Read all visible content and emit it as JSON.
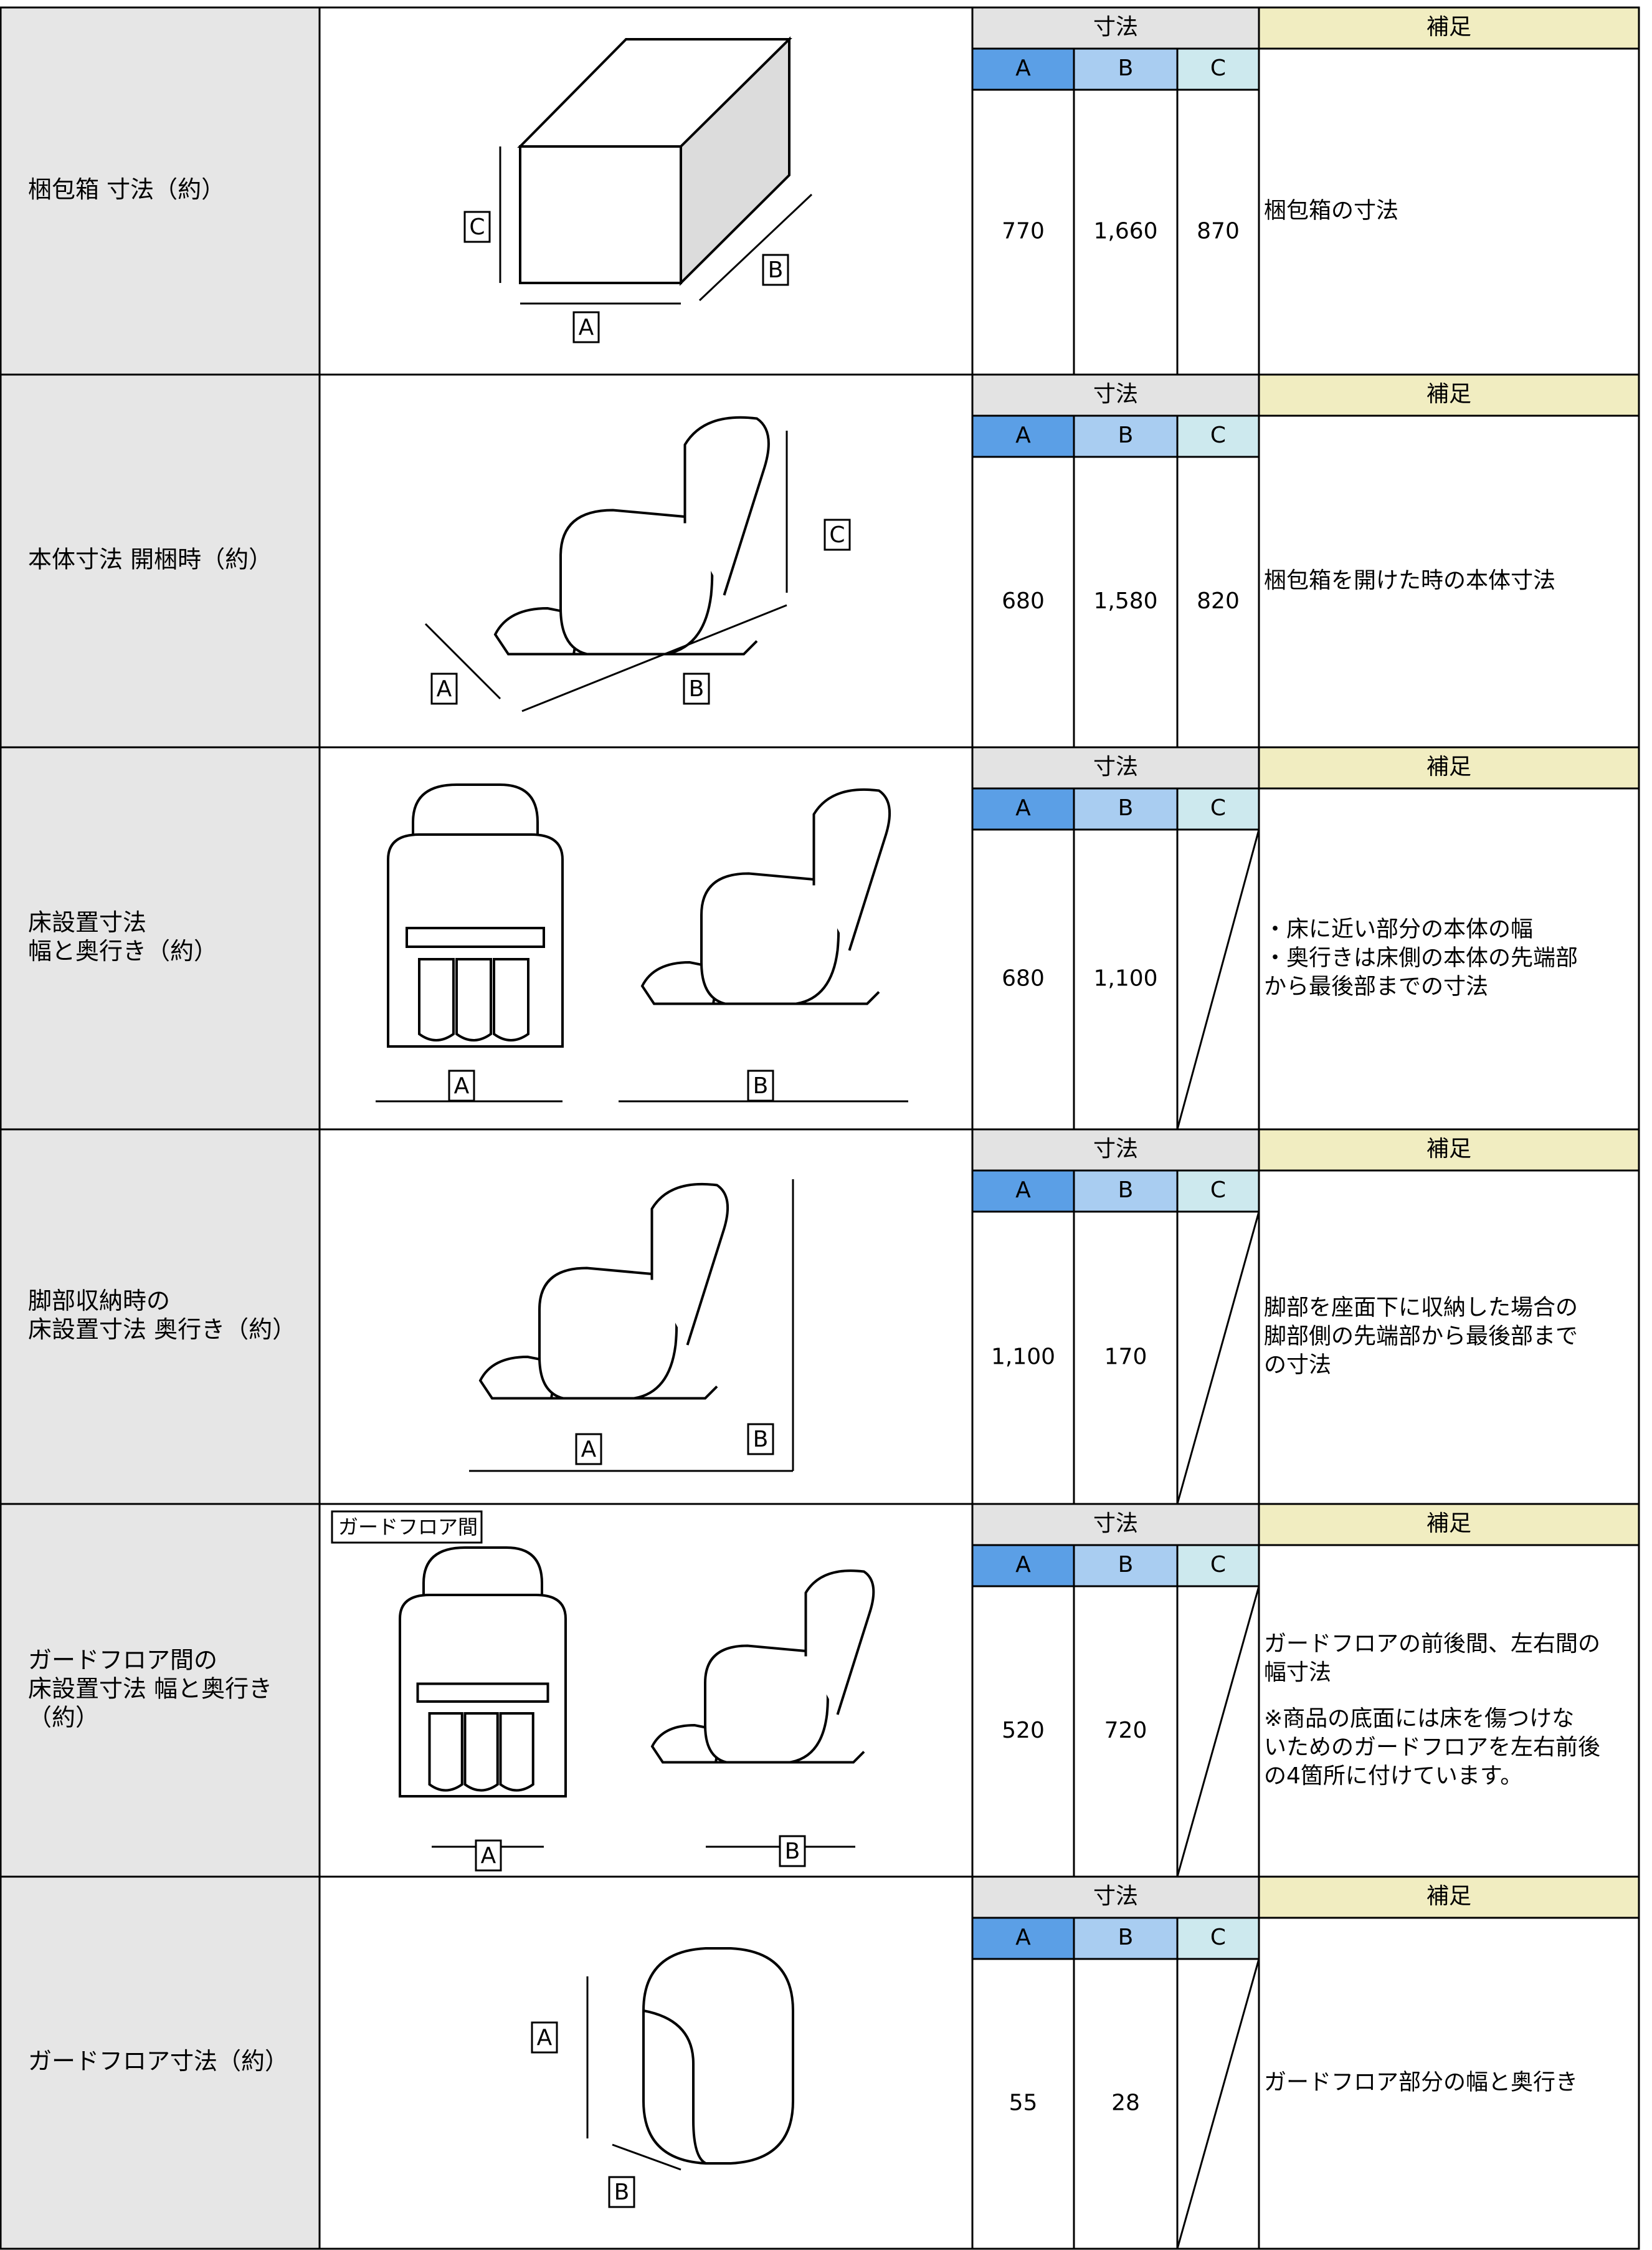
{
  "rows": [
    {
      "label": [
        "梱包箱 寸法（約）"
      ],
      "header_dims": "寸法",
      "header_note": "補足",
      "col_heads": [
        "A",
        "B",
        "C"
      ],
      "values": [
        "770",
        "1,660",
        "870"
      ],
      "note": [
        [
          "梱包箱の寸法"
        ]
      ],
      "diagram_labels": [
        "C",
        "B",
        "A"
      ]
    },
    {
      "label": [
        "本体寸法 開梱時（約）"
      ],
      "header_dims": "寸法",
      "header_note": "補足",
      "col_heads": [
        "A",
        "B",
        "C"
      ],
      "values": [
        "680",
        "1,580",
        "820"
      ],
      "note": [
        [
          "梱包箱を開けた時の本体寸法"
        ]
      ],
      "diagram_labels": [
        "C",
        "A",
        "B"
      ]
    },
    {
      "label": [
        "床設置寸法",
        "幅と奥行き（約）"
      ],
      "header_dims": "寸法",
      "header_note": "補足",
      "col_heads": [
        "A",
        "B",
        "C"
      ],
      "values": [
        "680",
        "1,100",
        null
      ],
      "note": [
        [
          "・床に近い部分の本体の幅",
          "・奥行きは床側の本体の先端部",
          "から最後部までの寸法"
        ]
      ],
      "diagram_labels": [
        "A",
        "B"
      ]
    },
    {
      "label": [
        "脚部収納時の",
        "床設置寸法 奥行き（約）"
      ],
      "header_dims": "寸法",
      "header_note": "補足",
      "col_heads": [
        "A",
        "B",
        "C"
      ],
      "values": [
        "1,100",
        "170",
        null
      ],
      "note": [
        [
          "脚部を座面下に収納した場合の",
          "脚部側の先端部から最後部まで",
          "の寸法"
        ]
      ],
      "diagram_labels": [
        "A",
        "B"
      ]
    },
    {
      "label": [
        "ガードフロア間の",
        "床設置寸法 幅と奥行き",
        "（約）"
      ],
      "header_dims": "寸法",
      "header_note": "補足",
      "col_heads": [
        "A",
        "B",
        "C"
      ],
      "values": [
        "520",
        "720",
        null
      ],
      "note": [
        [
          "ガードフロアの前後間、左右間の",
          "幅寸法"
        ],
        [
          "※商品の底面には床を傷つけな",
          "いためのガードフロアを左右前後",
          "の4箇所に付けています。"
        ]
      ],
      "diagram_labels": [
        "A",
        "B"
      ],
      "tag": "ガードフロア間"
    },
    {
      "label": [
        "ガードフロア寸法（約）"
      ],
      "header_dims": "寸法",
      "header_note": "補足",
      "col_heads": [
        "A",
        "B",
        "C"
      ],
      "values": [
        "55",
        "28",
        null
      ],
      "note": [
        [
          "ガードフロア部分の幅と奥行き"
        ]
      ],
      "diagram_labels": [
        "A",
        "B"
      ]
    }
  ]
}
